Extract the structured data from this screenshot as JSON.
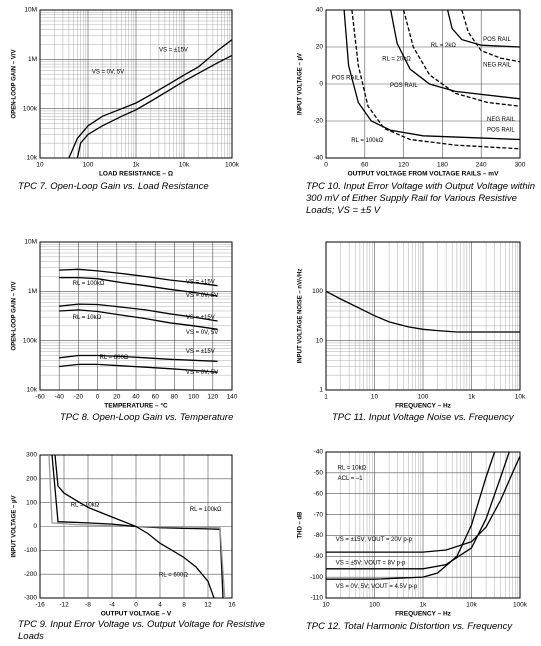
{
  "chart_data": [
    {
      "type": "line",
      "caption": "TPC 7. Open-Loop Gain vs. Load Resistance",
      "x_label": "LOAD RESISTANCE – Ω",
      "y_label": "OPEN-LOOP GAIN – V/V",
      "xlog": true,
      "ylog": true,
      "grid": true,
      "xlim": [
        10,
        100000
      ],
      "ylim": [
        10000,
        10000000
      ],
      "xticks": [
        10,
        100,
        {
          "value": 1000,
          "label": "1k"
        },
        {
          "value": 10000,
          "label": "10k"
        },
        {
          "value": 100000,
          "label": "100k"
        }
      ],
      "yticks": [
        {
          "value": 10000,
          "label": "10k"
        },
        {
          "value": 100000,
          "label": "100k"
        },
        {
          "value": 1000000,
          "label": "1M"
        },
        {
          "value": 10000000,
          "label": "10M"
        }
      ],
      "annotations": [
        "VS = ±15V",
        "VS = 0V, 5V"
      ],
      "series": [
        {
          "color": "#000000",
          "x": [
            40,
            60,
            100,
            200,
            500,
            1000,
            2000,
            5000,
            10000,
            20000,
            50000,
            100000
          ],
          "values": [
            10000,
            25000,
            45000,
            70000,
            100000,
            130000,
            190000,
            320000,
            480000,
            700000,
            1500000,
            2500000
          ]
        },
        {
          "color": "#000000",
          "x": [
            60,
            70,
            100,
            200,
            500,
            1000,
            2000,
            5000,
            10000,
            20000,
            50000,
            100000
          ],
          "values": [
            10000,
            20000,
            30000,
            45000,
            70000,
            95000,
            140000,
            240000,
            360000,
            520000,
            850000,
            1200000
          ]
        }
      ]
    },
    {
      "type": "line",
      "caption": "TPC 10. Input Error Voltage with Output Voltage within 300 mV of Either Supply Rail for Various Resistive Loads; VS = ±5 V",
      "x_label": "OUTPUT VOLTAGE FROM VOLTAGE RAILS – mV",
      "y_label": "INPUT VOLTAGE – µV",
      "xlog": false,
      "ylog": false,
      "grid": true,
      "xlim": [
        0,
        300
      ],
      "ylim": [
        -40,
        40
      ],
      "xticks": [
        0,
        60,
        120,
        180,
        240,
        300
      ],
      "yticks": [
        -40,
        -20,
        0,
        20,
        40
      ],
      "annotations": [
        "RL = 2kΩ",
        "POS RAIL",
        "RL = 20kΩ",
        "NEG RAIL",
        "POS RAIL",
        "POS RAIL",
        "NEG RAIL",
        "POS RAIL",
        "RL = 100kΩ"
      ],
      "series": [
        {
          "color": "#000000",
          "dash": false,
          "x": [
            188,
            195,
            210,
            240,
            300
          ],
          "values": [
            40,
            30,
            24,
            21,
            20
          ]
        },
        {
          "color": "#000000",
          "dash": true,
          "x": [
            210,
            220,
            240,
            270,
            300
          ],
          "values": [
            40,
            28,
            18,
            14,
            12
          ]
        },
        {
          "color": "#000000",
          "dash": false,
          "x": [
            100,
            110,
            130,
            160,
            200,
            300
          ],
          "values": [
            40,
            22,
            8,
            0,
            -4,
            -8
          ]
        },
        {
          "color": "#000000",
          "dash": true,
          "x": [
            120,
            135,
            160,
            200,
            250,
            300
          ],
          "values": [
            40,
            20,
            5,
            -5,
            -10,
            -12
          ]
        },
        {
          "color": "#000000",
          "dash": false,
          "x": [
            28,
            35,
            50,
            70,
            100,
            150,
            300
          ],
          "values": [
            40,
            10,
            -10,
            -20,
            -25,
            -28,
            -30
          ]
        },
        {
          "color": "#000000",
          "dash": true,
          "x": [
            40,
            50,
            65,
            90,
            130,
            200,
            300
          ],
          "values": [
            40,
            10,
            -12,
            -24,
            -30,
            -33,
            -35
          ]
        }
      ]
    },
    {
      "type": "line",
      "caption": "TPC 8. Open-Loop Gain vs. Temperature",
      "x_label": "TEMPERATURE – °C",
      "y_label": "OPEN-LOOP GAIN – V/V",
      "xlog": false,
      "ylog": true,
      "grid": true,
      "xlim": [
        -60,
        140
      ],
      "ylim": [
        10000,
        10000000
      ],
      "xticks": [
        -60,
        -40,
        -20,
        0,
        20,
        40,
        60,
        80,
        100,
        120,
        140
      ],
      "yticks": [
        {
          "value": 10000,
          "label": "10k"
        },
        {
          "value": 100000,
          "label": "100k"
        },
        {
          "value": 1000000,
          "label": "1M"
        },
        {
          "value": 10000000,
          "label": "10M"
        }
      ],
      "annotations": [
        "VS = ±15V",
        "VS = 0V, 5V",
        "VS = ±15V",
        "VS = 0V, 5V",
        "VS = ±15V",
        "VS = 0V, 5V",
        "RL = 100kΩ",
        "RL = 10kΩ",
        "RL = 600Ω"
      ],
      "series": [
        {
          "color": "#000000",
          "x": [
            -40,
            -20,
            0,
            25,
            50,
            75,
            100,
            125
          ],
          "values": [
            2700000,
            2800000,
            2600000,
            2300000,
            2000000,
            1700000,
            1500000,
            1300000
          ]
        },
        {
          "color": "#000000",
          "x": [
            -40,
            -20,
            0,
            25,
            50,
            75,
            100,
            125
          ],
          "values": [
            1900000,
            1900000,
            1800000,
            1500000,
            1300000,
            1100000,
            950000,
            800000
          ]
        },
        {
          "color": "#000000",
          "x": [
            -40,
            -20,
            0,
            25,
            50,
            75,
            100,
            125
          ],
          "values": [
            500000,
            550000,
            540000,
            480000,
            420000,
            350000,
            300000,
            250000
          ]
        },
        {
          "color": "#000000",
          "x": [
            -40,
            -20,
            0,
            25,
            50,
            75,
            100,
            125
          ],
          "values": [
            400000,
            420000,
            390000,
            330000,
            280000,
            230000,
            200000,
            170000
          ]
        },
        {
          "color": "#000000",
          "x": [
            -40,
            -20,
            0,
            25,
            50,
            75,
            100,
            125
          ],
          "values": [
            45000,
            50000,
            50000,
            48000,
            45000,
            42000,
            40000,
            38000
          ]
        },
        {
          "color": "#000000",
          "x": [
            -40,
            -20,
            0,
            25,
            50,
            75,
            100,
            125
          ],
          "values": [
            30000,
            33000,
            33000,
            31000,
            29000,
            27000,
            25000,
            23000
          ]
        }
      ]
    },
    {
      "type": "line",
      "caption": "TPC 11. Input Voltage Noise vs. Frequency",
      "x_label": "FREQUENCY – Hz",
      "y_label": "INPUT VOLTAGE NOISE – nV/√Hz",
      "xlog": true,
      "ylog": true,
      "grid": true,
      "xlim": [
        1,
        10000
      ],
      "ylim": [
        1,
        1000
      ],
      "xticks": [
        1,
        10,
        100,
        {
          "value": 1000,
          "label": "1k"
        },
        {
          "value": 10000,
          "label": "10k"
        }
      ],
      "yticks": [
        1,
        10,
        100
      ],
      "annotations": [],
      "series": [
        {
          "color": "#000000",
          "x": [
            1,
            2,
            5,
            10,
            20,
            50,
            100,
            200,
            500,
            1000,
            2000,
            5000,
            10000
          ],
          "values": [
            100,
            70,
            45,
            32,
            24,
            19,
            17,
            16,
            15,
            15,
            15,
            15,
            15
          ]
        }
      ]
    },
    {
      "type": "line",
      "caption": "TPC 9. Input Error Voltage vs. Output Voltage for Resistive Loads",
      "x_label": "OUTPUT VOLTAGE – V",
      "y_label": "INPUT VOLTAGE – µV",
      "xlog": false,
      "ylog": false,
      "grid": true,
      "xlim": [
        -16,
        16
      ],
      "ylim": [
        -300,
        300
      ],
      "xticks": [
        -16,
        -12,
        -8,
        -4,
        0,
        4,
        8,
        12,
        16
      ],
      "yticks": [
        -300,
        -200,
        -100,
        0,
        100,
        200,
        300
      ],
      "annotations": [
        "RL = 10kΩ",
        "RL = 100kΩ",
        "RL = 600Ω"
      ],
      "series": [
        {
          "color": "#000000",
          "x": [
            -13.5,
            -13,
            -12,
            -10,
            -8,
            -4,
            0,
            4,
            8,
            12,
            14,
            14.5
          ],
          "values": [
            300,
            170,
            140,
            110,
            80,
            40,
            0,
            -5,
            -8,
            -10,
            -12,
            -300
          ]
        },
        {
          "color": "#999999",
          "x": [
            -14.5,
            -14,
            -10,
            0,
            10,
            14,
            14.8
          ],
          "values": [
            300,
            15,
            8,
            0,
            -3,
            -5,
            -300
          ]
        },
        {
          "color": "#000000",
          "x": [
            -14,
            -13,
            -8,
            -4,
            0,
            2,
            4,
            6,
            8,
            10,
            12,
            13
          ],
          "values": [
            300,
            20,
            15,
            10,
            0,
            -30,
            -70,
            -100,
            -130,
            -170,
            -230,
            -300
          ]
        }
      ]
    },
    {
      "type": "line",
      "caption": "TPC 12. Total Harmonic Distortion vs. Frequency",
      "x_label": "FREQUENCY – Hz",
      "y_label": "THD – dB",
      "xlog": true,
      "ylog": false,
      "grid": true,
      "xlim": [
        10,
        100000
      ],
      "ylim": [
        -110,
        -40
      ],
      "xticks": [
        10,
        100,
        {
          "value": 1000,
          "label": "1k"
        },
        {
          "value": 10000,
          "label": "10k"
        },
        {
          "value": 100000,
          "label": "100k"
        }
      ],
      "yticks": [
        -110,
        -100,
        -90,
        -80,
        -70,
        -60,
        -50,
        -40
      ],
      "annotations": [
        "RL = 10kΩ",
        "ACL = –1",
        "VS = ±15V; VOUT = 20V p-p",
        "VS = ±5V; VOUT = 8V p-p",
        "VS = 0V, 5V; VOUT = 4.5V p-p"
      ],
      "series": [
        {
          "color": "#000000",
          "x": [
            10,
            100,
            1000,
            3000,
            10000,
            20000,
            40000,
            70000,
            100000
          ],
          "values": [
            -88,
            -88,
            -88,
            -87,
            -83,
            -76,
            -63,
            -50,
            -42
          ]
        },
        {
          "color": "#000000",
          "x": [
            10,
            100,
            1000,
            3000,
            10000,
            20000,
            40000,
            60000
          ],
          "values": [
            -96,
            -96,
            -96,
            -94,
            -86,
            -72,
            -52,
            -40
          ]
        },
        {
          "color": "#000000",
          "x": [
            10,
            100,
            1000,
            2000,
            5000,
            10000,
            20000,
            30000
          ],
          "values": [
            -101,
            -101,
            -100,
            -98,
            -90,
            -75,
            -52,
            -40
          ]
        }
      ]
    }
  ]
}
